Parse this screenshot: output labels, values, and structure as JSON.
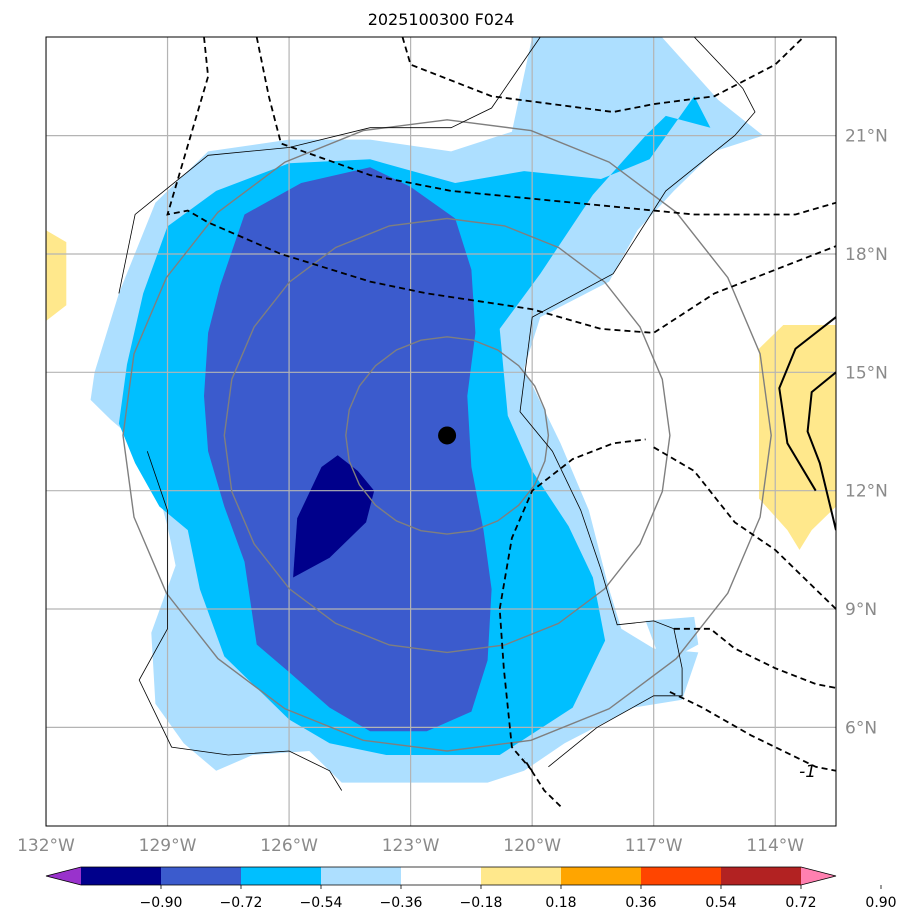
{
  "chart_data": {
    "type": "contour-map",
    "title": "2025100300 F024",
    "lon_range": [
      -132,
      -112.5
    ],
    "lat_range": [
      3.5,
      23.5
    ],
    "x_ticks": [
      {
        "value": -132,
        "label": "132°W"
      },
      {
        "value": -129,
        "label": "129°W"
      },
      {
        "value": -126,
        "label": "126°W"
      },
      {
        "value": -123,
        "label": "123°W"
      },
      {
        "value": -120,
        "label": "120°W"
      },
      {
        "value": -117,
        "label": "117°W"
      },
      {
        "value": -114,
        "label": "114°W"
      }
    ],
    "y_ticks": [
      {
        "value": 21,
        "label": "21°N"
      },
      {
        "value": 18,
        "label": "18°N"
      },
      {
        "value": 15,
        "label": "15°N"
      },
      {
        "value": 12,
        "label": "12°N"
      },
      {
        "value": 9,
        "label": "9°N"
      },
      {
        "value": 6,
        "label": "6°N"
      }
    ],
    "grid": true,
    "storm_center": {
      "lon": -122.1,
      "lat": 13.4
    },
    "range_rings_deg": [
      2.5,
      5.5,
      8.0
    ],
    "colorbar": {
      "extend": "both",
      "orientation": "horizontal",
      "location": "bottom",
      "levels": [
        {
          "value": -0.9,
          "label": "−0.90"
        },
        {
          "value": -0.72,
          "label": "−0.72"
        },
        {
          "value": -0.54,
          "label": "−0.54"
        },
        {
          "value": -0.36,
          "label": "−0.36"
        },
        {
          "value": -0.18,
          "label": "−0.18"
        },
        {
          "value": 0.18,
          "label": "0.18"
        },
        {
          "value": 0.36,
          "label": "0.36"
        },
        {
          "value": 0.54,
          "label": "0.54"
        },
        {
          "value": 0.72,
          "label": "0.72"
        },
        {
          "value": 0.9,
          "label": "0.90"
        }
      ],
      "colors": [
        "#9932CC",
        "#00008B",
        "#3B5BCD",
        "#00BFFF",
        "#ADDFFF",
        "#FFFFFF",
        "#FFE88C",
        "#FFA500",
        "#FF4500",
        "#B22222",
        "#FF80B0"
      ]
    },
    "shaded_fields": [
      {
        "name": "field-light-blue",
        "min": -0.36,
        "max": -0.18,
        "color": "#ADDFFF",
        "outline": [
          [
            -130.8,
            15.0
          ],
          [
            -130.2,
            17.0
          ],
          [
            -129.3,
            19.3
          ],
          [
            -128.0,
            20.6
          ],
          [
            -126.0,
            20.9
          ],
          [
            -124.0,
            20.9
          ],
          [
            -122.0,
            20.6
          ],
          [
            -120.5,
            21.1
          ],
          [
            -120.0,
            23.5
          ],
          [
            -116.8,
            23.5
          ],
          [
            -115.4,
            21.9
          ],
          [
            -114.3,
            21.0
          ],
          [
            -115.5,
            20.6
          ],
          [
            -116.5,
            19.6
          ],
          [
            -117.4,
            18.6
          ],
          [
            -118.1,
            17.3
          ],
          [
            -119.8,
            16.4
          ],
          [
            -120.2,
            15.1
          ],
          [
            -119.3,
            13.2
          ],
          [
            -118.6,
            11.5
          ],
          [
            -118.1,
            9.5
          ],
          [
            -117.8,
            8.5
          ],
          [
            -117.0,
            8.0
          ],
          [
            -115.9,
            7.9
          ],
          [
            -116.3,
            6.7
          ],
          [
            -117.5,
            6.5
          ],
          [
            -119.2,
            5.6
          ],
          [
            -120.2,
            4.9
          ],
          [
            -121.1,
            4.6
          ],
          [
            -124.7,
            4.6
          ],
          [
            -125.5,
            5.4
          ],
          [
            -126.9,
            5.3
          ],
          [
            -127.8,
            4.9
          ],
          [
            -128.6,
            5.6
          ],
          [
            -129.3,
            6.6
          ],
          [
            -129.4,
            8.4
          ],
          [
            -128.8,
            10.1
          ],
          [
            -129.0,
            11.1
          ],
          [
            -129.5,
            13.0
          ],
          [
            -130.4,
            13.8
          ],
          [
            -130.9,
            14.3
          ]
        ]
      },
      {
        "name": "field-light-blue-southeast",
        "min": -0.36,
        "max": -0.18,
        "color": "#ADDFFF",
        "outline": [
          [
            -117.2,
            8.7
          ],
          [
            -116.0,
            8.8
          ],
          [
            -115.9,
            8.1
          ],
          [
            -116.8,
            7.6
          ]
        ]
      },
      {
        "name": "field-sky-blue",
        "min": -0.54,
        "max": -0.36,
        "color": "#00BFFF",
        "outline": [
          [
            -130.0,
            15.2
          ],
          [
            -129.6,
            17.0
          ],
          [
            -129.0,
            18.7
          ],
          [
            -127.8,
            19.6
          ],
          [
            -126.0,
            20.3
          ],
          [
            -124.0,
            20.4
          ],
          [
            -121.9,
            19.8
          ],
          [
            -120.2,
            20.1
          ],
          [
            -118.3,
            19.9
          ],
          [
            -117.1,
            20.4
          ],
          [
            -116.0,
            22.0
          ],
          [
            -115.6,
            21.2
          ],
          [
            -116.7,
            21.5
          ],
          [
            -117.2,
            21.0
          ],
          [
            -118.5,
            19.5
          ],
          [
            -119.8,
            17.5
          ],
          [
            -120.8,
            16.1
          ],
          [
            -120.6,
            13.9
          ],
          [
            -120.0,
            12.5
          ],
          [
            -119.1,
            11.1
          ],
          [
            -118.5,
            9.8
          ],
          [
            -118.2,
            8.2
          ],
          [
            -119.0,
            6.5
          ],
          [
            -120.8,
            5.3
          ],
          [
            -123.6,
            5.3
          ],
          [
            -125.0,
            5.6
          ],
          [
            -126.0,
            6.2
          ],
          [
            -126.8,
            7.0
          ],
          [
            -127.6,
            7.8
          ],
          [
            -128.2,
            9.5
          ],
          [
            -128.5,
            11.0
          ],
          [
            -129.2,
            11.6
          ],
          [
            -129.8,
            12.7
          ],
          [
            -130.2,
            13.7
          ]
        ]
      },
      {
        "name": "field-medium-blue",
        "min": -0.72,
        "max": -0.54,
        "color": "#3B5BCD",
        "outline": [
          [
            -127.7,
            17.2
          ],
          [
            -127.1,
            19.0
          ],
          [
            -125.7,
            19.8
          ],
          [
            -124.0,
            20.2
          ],
          [
            -123.0,
            19.7
          ],
          [
            -121.9,
            18.9
          ],
          [
            -121.5,
            17.6
          ],
          [
            -121.4,
            16.0
          ],
          [
            -121.6,
            14.4
          ],
          [
            -121.5,
            12.6
          ],
          [
            -121.2,
            11.0
          ],
          [
            -121.0,
            9.5
          ],
          [
            -121.1,
            7.7
          ],
          [
            -121.5,
            6.4
          ],
          [
            -122.6,
            5.9
          ],
          [
            -124.0,
            5.9
          ],
          [
            -125.0,
            6.5
          ],
          [
            -126.0,
            7.4
          ],
          [
            -126.8,
            8.1
          ],
          [
            -127.1,
            10.2
          ],
          [
            -127.6,
            11.6
          ],
          [
            -128.0,
            13.0
          ],
          [
            -128.1,
            14.4
          ],
          [
            -128.0,
            16.0
          ]
        ]
      },
      {
        "name": "field-dark-navy",
        "min": -0.9,
        "max": -0.72,
        "color": "#00008B",
        "outline": [
          [
            -125.9,
            9.8
          ],
          [
            -125.8,
            11.3
          ],
          [
            -125.2,
            12.6
          ],
          [
            -124.8,
            12.9
          ],
          [
            -124.3,
            12.5
          ],
          [
            -123.9,
            12.0
          ],
          [
            -124.1,
            11.2
          ],
          [
            -125.0,
            10.3
          ]
        ]
      },
      {
        "name": "field-yellow-west",
        "min": 0.18,
        "max": 0.36,
        "color": "#FFE88C",
        "outline": [
          [
            -132.0,
            18.6
          ],
          [
            -131.5,
            18.3
          ],
          [
            -131.5,
            16.7
          ],
          [
            -132.0,
            16.3
          ]
        ]
      },
      {
        "name": "field-yellow-east",
        "min": 0.18,
        "max": 0.36,
        "color": "#FFE88C",
        "outline": [
          [
            -114.4,
            15.6
          ],
          [
            -113.8,
            16.2
          ],
          [
            -112.5,
            16.2
          ],
          [
            -112.5,
            11.6
          ],
          [
            -113.1,
            11.0
          ],
          [
            -113.4,
            10.5
          ],
          [
            -113.7,
            11.0
          ],
          [
            -114.4,
            11.8
          ]
        ]
      }
    ],
    "thin_contour": {
      "name": "thin-contour-outer",
      "points": [
        [
          -130.2,
          17.0
        ],
        [
          -129.8,
          19.0
        ],
        [
          -128.0,
          20.5
        ],
        [
          -126.0,
          20.7
        ],
        [
          -124.0,
          21.2
        ],
        [
          -122.0,
          21.2
        ],
        [
          -121.0,
          21.7
        ],
        [
          -120.4,
          22.6
        ],
        [
          -119.8,
          23.5
        ]
      ]
    },
    "thin_contour_south": {
      "name": "thin-contour-south",
      "points": [
        [
          -129.5,
          13.0
        ],
        [
          -129.0,
          11.5
        ],
        [
          -129.0,
          9.5
        ],
        [
          -129.0,
          8.5
        ],
        [
          -129.7,
          7.2
        ],
        [
          -128.9,
          5.5
        ],
        [
          -127.5,
          5.3
        ],
        [
          -126.0,
          5.4
        ],
        [
          -125.0,
          4.9
        ],
        [
          -124.7,
          4.4
        ]
      ]
    },
    "thin_contour_east": {
      "name": "thin-contour-east",
      "points": [
        [
          -119.6,
          5.0
        ],
        [
          -118.4,
          6.0
        ],
        [
          -117.0,
          6.8
        ],
        [
          -116.3,
          6.8
        ],
        [
          -116.3,
          7.5
        ],
        [
          -116.5,
          8.5
        ],
        [
          -117.0,
          8.7
        ],
        [
          -117.9,
          8.6
        ],
        [
          -118.3,
          10.0
        ],
        [
          -118.8,
          11.5
        ],
        [
          -119.5,
          13.0
        ],
        [
          -120.3,
          14.0
        ],
        [
          -120.0,
          16.4
        ],
        [
          -118.0,
          17.5
        ],
        [
          -116.7,
          19.6
        ],
        [
          -115.0,
          21.0
        ],
        [
          -114.5,
          21.6
        ],
        [
          -114.8,
          22.2
        ],
        [
          -116.0,
          23.5
        ]
      ]
    },
    "dashed_contours": [
      {
        "name": "dashed-contour-north-a",
        "points": [
          [
            -123.2,
            23.5
          ],
          [
            -123.0,
            22.8
          ],
          [
            -121.0,
            22.0
          ],
          [
            -118.0,
            21.6
          ],
          [
            -117.0,
            21.8
          ],
          [
            -115.5,
            22.0
          ],
          [
            -114.0,
            22.8
          ],
          [
            -113.3,
            23.5
          ]
        ]
      },
      {
        "name": "dashed-contour-north-b",
        "points": [
          [
            -128.1,
            23.5
          ],
          [
            -128.0,
            22.5
          ],
          [
            -129.0,
            19.0
          ],
          [
            -128.5,
            19.1
          ],
          [
            -128.0,
            18.8
          ],
          [
            -126.2,
            18.0
          ],
          [
            -124.0,
            17.3
          ],
          [
            -122.6,
            17.0
          ],
          [
            -120.0,
            16.6
          ],
          [
            -118.3,
            16.1
          ],
          [
            -117.0,
            16.0
          ],
          [
            -115.5,
            17.0
          ],
          [
            -114.0,
            17.6
          ],
          [
            -112.5,
            18.2
          ]
        ]
      },
      {
        "name": "dashed-contour-north-c",
        "points": [
          [
            -126.8,
            23.5
          ],
          [
            -126.5,
            22.0
          ],
          [
            -126.2,
            20.8
          ],
          [
            -124.0,
            20.0
          ],
          [
            -122.0,
            19.6
          ],
          [
            -120.0,
            19.4
          ],
          [
            -118.0,
            19.2
          ],
          [
            -116.0,
            19.0
          ],
          [
            -115.0,
            19.0
          ],
          [
            -113.5,
            19.0
          ],
          [
            -112.5,
            19.3
          ]
        ]
      },
      {
        "name": "dashed-contour-southeast-a",
        "points": [
          [
            -117.0,
            13.1
          ],
          [
            -116.0,
            12.5
          ],
          [
            -115.0,
            11.2
          ],
          [
            -114.0,
            10.5
          ],
          [
            -112.5,
            9.0
          ]
        ]
      },
      {
        "name": "dashed-contour-southeast-b",
        "points": [
          [
            -120.0,
            4.9
          ],
          [
            -120.5,
            5.5
          ],
          [
            -120.7,
            7.5
          ],
          [
            -120.8,
            9.0
          ],
          [
            -120.5,
            10.8
          ],
          [
            -120.0,
            12.0
          ],
          [
            -119.0,
            12.8
          ],
          [
            -118.0,
            13.2
          ],
          [
            -117.2,
            13.3
          ]
        ]
      },
      {
        "name": "dashed-contour-southeast-c",
        "points": [
          [
            -116.5,
            8.5
          ],
          [
            -115.6,
            8.5
          ],
          [
            -115.0,
            8.0
          ],
          [
            -114.0,
            7.5
          ],
          [
            -113.0,
            7.1
          ],
          [
            -112.5,
            7.0
          ]
        ]
      },
      {
        "name": "dashed-contour-southeast-d",
        "points": [
          [
            -116.6,
            6.9
          ],
          [
            -115.8,
            6.5
          ],
          [
            -114.6,
            5.8
          ],
          [
            -113.6,
            5.3
          ],
          [
            -113.0,
            5.0
          ],
          [
            -112.5,
            4.9
          ]
        ]
      },
      {
        "name": "dashed-contour-south-e",
        "points": [
          [
            -119.3,
            4.0
          ],
          [
            -119.7,
            4.4
          ],
          [
            -120.2,
            5.2
          ]
        ]
      }
    ],
    "solid_thick_contours": [
      {
        "name": "thick-contour-east-a",
        "points": [
          [
            -113.0,
            12.0
          ],
          [
            -113.7,
            13.2
          ],
          [
            -113.9,
            14.6
          ],
          [
            -113.5,
            15.6
          ],
          [
            -112.5,
            16.4
          ]
        ]
      },
      {
        "name": "thick-contour-east-b",
        "points": [
          [
            -112.5,
            11.0
          ],
          [
            -112.9,
            12.7
          ],
          [
            -113.2,
            13.5
          ],
          [
            -113.1,
            14.5
          ],
          [
            -112.5,
            15.0
          ]
        ]
      }
    ],
    "contour_labels": [
      {
        "name": "contour-label-minus-one",
        "lon": -113.2,
        "lat": 4.9,
        "text": "-1"
      }
    ]
  }
}
